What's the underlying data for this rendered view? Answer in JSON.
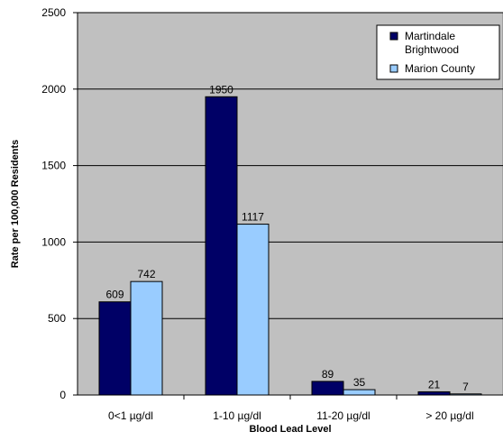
{
  "chart_data": {
    "type": "bar",
    "categories": [
      "0<1 µg/dl",
      "1-10  µg/dl",
      "11-20  µg/dl",
      "> 20  µg/dl"
    ],
    "series": [
      {
        "name": "Martindale Brightwood",
        "values": [
          609,
          1950,
          89,
          21
        ],
        "color": "#000066"
      },
      {
        "name": "Marion County",
        "values": [
          742,
          1117,
          35,
          7
        ],
        "color": "#99ccff"
      }
    ],
    "title": "",
    "xlabel": "Blood Lead Level",
    "ylabel": "Rate per 100,000 Residents",
    "ylim": [
      0,
      2500
    ],
    "yticks": [
      0,
      500,
      1000,
      1500,
      2000,
      2500
    ],
    "grid": true,
    "legend_position": "top-right",
    "plot_background": "#c0c0c0"
  },
  "legend_lines": [
    [
      "Martindale",
      "Brightwood"
    ],
    [
      "Marion County"
    ]
  ]
}
